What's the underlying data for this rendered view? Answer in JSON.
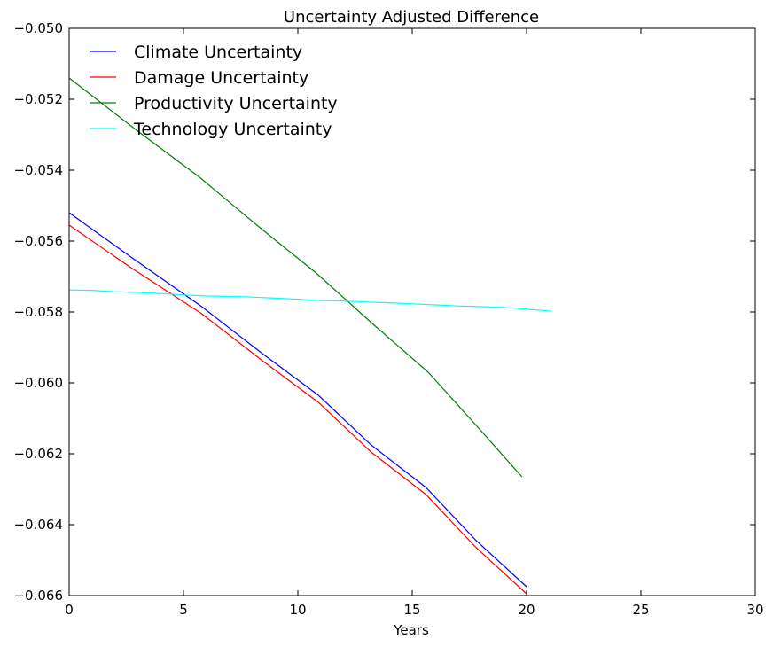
{
  "chart_data": {
    "type": "line",
    "title": "Uncertainty Adjusted Difference",
    "xlabel": "Years",
    "ylabel": "",
    "xlim": [
      0,
      30
    ],
    "ylim": [
      -0.066,
      -0.05
    ],
    "x_ticks": [
      "0",
      "5",
      "10",
      "15",
      "20",
      "25",
      "30"
    ],
    "y_ticks": [
      "−0.050",
      "−0.052",
      "−0.054",
      "−0.056",
      "−0.058",
      "−0.060",
      "−0.062",
      "−0.064",
      "−0.066"
    ],
    "grid": false,
    "legend_position": "top-left",
    "series": [
      {
        "name": "Climate Uncertainty",
        "color": "#0000ff",
        "x": [
          0,
          2.7,
          5.8,
          8.4,
          10.9,
          13.2,
          15.6,
          17.8,
          20
        ],
        "y": [
          -0.0552,
          -0.05645,
          -0.05785,
          -0.05915,
          -0.06035,
          -0.06175,
          -0.06295,
          -0.06445,
          -0.06575
        ]
      },
      {
        "name": "Damage Uncertainty",
        "color": "#ff0000",
        "x": [
          0,
          2.7,
          5.8,
          8.4,
          10.9,
          13.2,
          15.6,
          17.8,
          20
        ],
        "y": [
          -0.05555,
          -0.05675,
          -0.05805,
          -0.05935,
          -0.06055,
          -0.06195,
          -0.06315,
          -0.06465,
          -0.06595
        ]
      },
      {
        "name": "Productivity Uncertainty",
        "color": "#008000",
        "x": [
          0,
          2.9,
          5.7,
          8.3,
          10.8,
          13.3,
          15.7,
          17.8,
          19.8
        ],
        "y": [
          -0.0514,
          -0.05285,
          -0.0542,
          -0.0556,
          -0.0569,
          -0.05835,
          -0.0597,
          -0.0612,
          -0.06265
        ]
      },
      {
        "name": "Technology Uncertainty",
        "color": "#00ffff",
        "x": [
          0,
          1,
          2,
          3,
          4,
          5,
          6,
          7,
          8,
          9,
          10,
          11,
          12,
          13,
          14,
          15,
          16,
          17,
          18,
          19,
          20,
          21.1
        ],
        "y": [
          -0.05738,
          -0.05739,
          -0.05743,
          -0.05745,
          -0.05748,
          -0.05752,
          -0.05755,
          -0.05756,
          -0.05758,
          -0.05761,
          -0.05764,
          -0.05768,
          -0.05769,
          -0.05772,
          -0.05774,
          -0.05777,
          -0.0578,
          -0.05783,
          -0.05785,
          -0.05787,
          -0.05792,
          -0.05798
        ]
      }
    ]
  }
}
